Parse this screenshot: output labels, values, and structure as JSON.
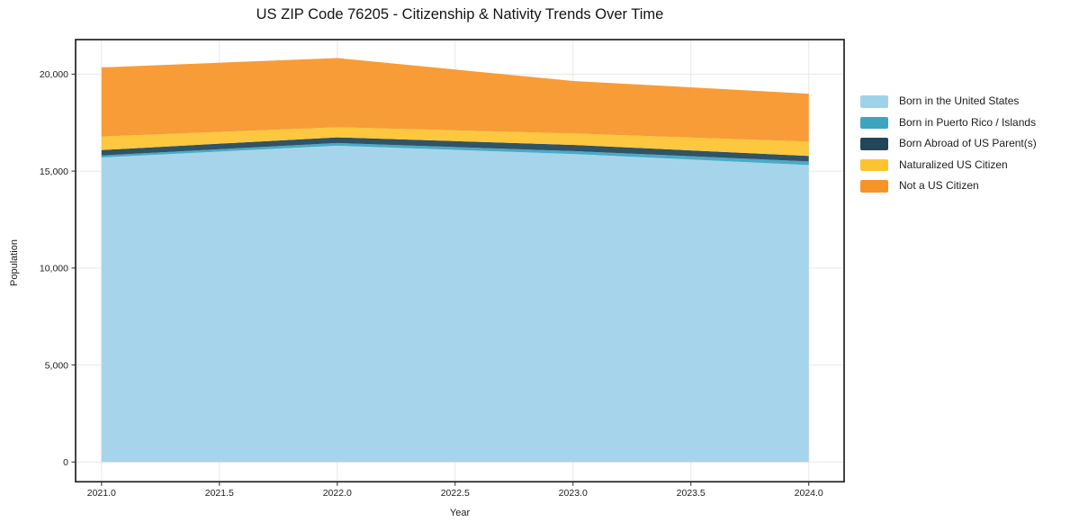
{
  "chart_data": {
    "type": "area",
    "stacked": true,
    "title": "US ZIP Code 76205 - Citizenship & Nativity Trends Over Time",
    "xlabel": "Year",
    "ylabel": "Population",
    "x": [
      2021,
      2022,
      2023,
      2024
    ],
    "series": [
      {
        "id": "born-in-united-states",
        "name": "Born in the United States",
        "color": "#9FD2E9",
        "values": [
          15700,
          16310,
          15880,
          15310
        ]
      },
      {
        "id": "born-in-puerto-rico-islands",
        "name": "Born in Puerto Rico / Islands",
        "color": "#3CA5C2",
        "values": [
          105,
          140,
          150,
          190
        ]
      },
      {
        "id": "born-abroad-of-us-parents",
        "name": "Born Abroad of US Parent(s)",
        "color": "#214659",
        "values": [
          280,
          290,
          320,
          280
        ]
      },
      {
        "id": "naturalized-us-citizen",
        "name": "Naturalized US Citizen",
        "color": "#FDC330",
        "values": [
          700,
          520,
          590,
          740
        ]
      },
      {
        "id": "not-a-us-citizen",
        "name": "Not a US Citizen",
        "color": "#F79428",
        "values": [
          3560,
          3570,
          2705,
          2470
        ]
      }
    ],
    "totals": [
      20345,
      20830,
      19645,
      18990
    ],
    "xticks": [
      2021,
      2021.5,
      2022,
      2022.5,
      2023,
      2023.5,
      2024
    ],
    "xtick_labels": [
      "2021.0",
      "2021.5",
      "2022.0",
      "2022.5",
      "2023.0",
      "2023.5",
      "2024.0"
    ],
    "yticks": [
      0,
      5000,
      10000,
      15000,
      20000
    ],
    "ytick_labels": [
      "0",
      "5,000",
      "10,000",
      "15,000",
      "20,000"
    ],
    "xlim": [
      2020.89,
      2024.15
    ],
    "ylim": [
      -1020,
      21780
    ],
    "grid": true,
    "legend_position": "right-outside",
    "colors": {
      "background": "#ffffff",
      "frame": "#151515",
      "grid": "#e7e7e7",
      "tick": "#2a2a2a",
      "text": "#1c1c1c"
    }
  }
}
